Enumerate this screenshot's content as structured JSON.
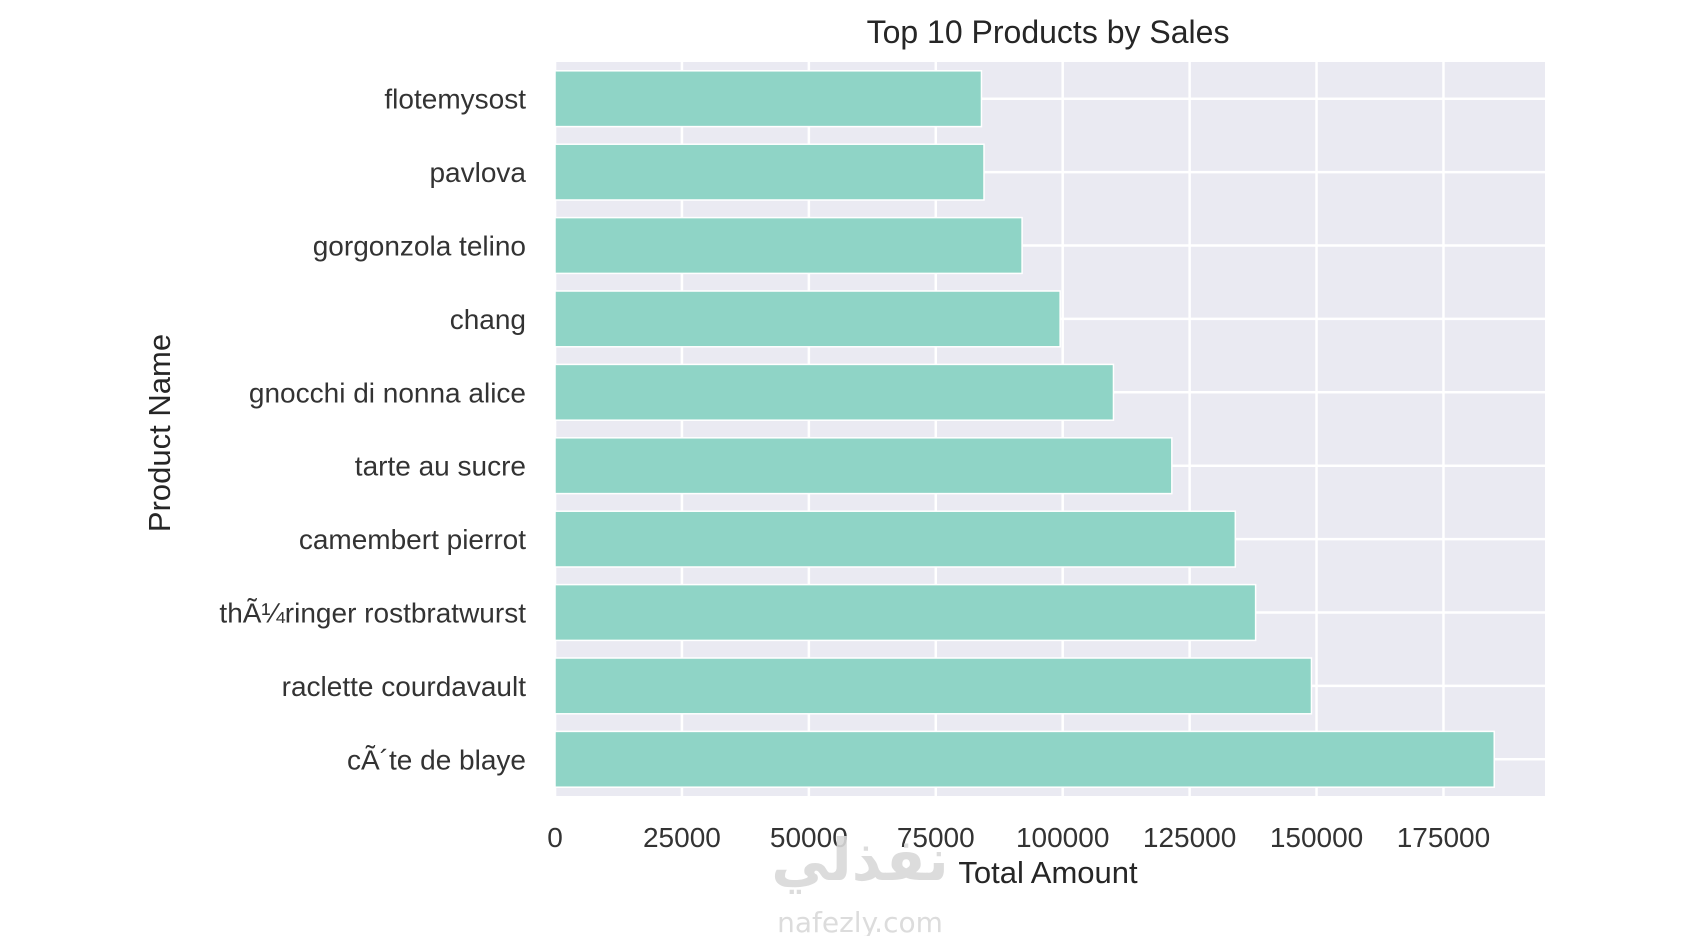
{
  "chart_data": {
    "type": "bar",
    "orientation": "horizontal",
    "title": "Top 10 Products by Sales",
    "xlabel": "Total Amount",
    "ylabel": "Product Name",
    "categories": [
      "flotemysost",
      "pavlova",
      "gorgonzola telino",
      "chang",
      "gnocchi di nonna alice",
      "tarte au sucre",
      "camembert pierrot",
      "thÃ¼ringer rostbratwurst",
      "raclette courdavault",
      "cÃ´te de blaye"
    ],
    "values": [
      84000,
      84500,
      92000,
      99500,
      110000,
      121500,
      134000,
      138000,
      149000,
      185000
    ],
    "xlim": [
      0,
      195000
    ],
    "xticks": [
      0,
      25000,
      50000,
      75000,
      100000,
      125000,
      150000,
      175000
    ],
    "xtick_labels": [
      "0",
      "25000",
      "50000",
      "75000",
      "100000",
      "125000",
      "150000",
      "175000"
    ],
    "grid": true,
    "colors": {
      "bar": "#8fd4c6",
      "plot_background": "#eaeaf2",
      "grid": "#ffffff"
    }
  },
  "watermark": {
    "text": "نفذلي",
    "sub": "nafezly.com"
  }
}
